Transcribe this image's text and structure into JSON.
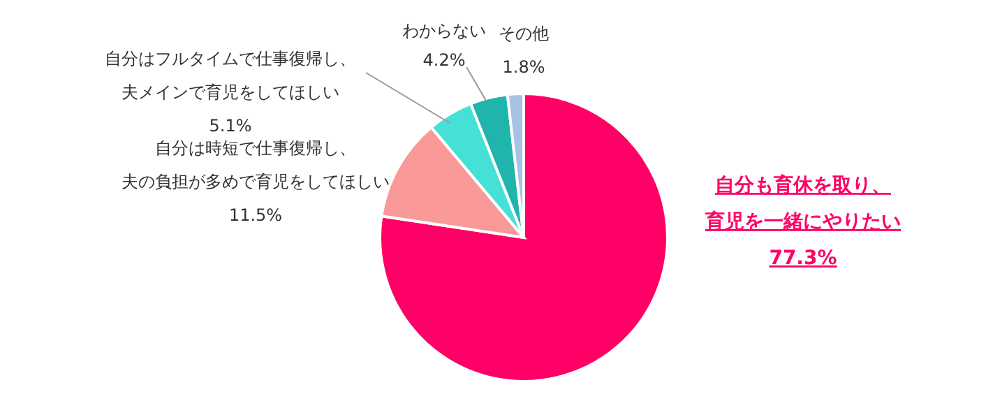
{
  "chart_data": {
    "type": "pie",
    "categories": [
      "自分も育休を取り、育児を一緒にやりたい",
      "自分は時短で仕事復帰し、夫の負担が多めで育児をしてほしい",
      "自分はフルタイムで仕事復帰し、夫メインで育児をしてほしい",
      "わからない",
      "その他"
    ],
    "values": [
      77.3,
      11.5,
      5.1,
      4.2,
      1.8
    ],
    "colors": [
      "#ff0066",
      "#f99a98",
      "#45e0d6",
      "#1fb5ad",
      "#a6c3e4"
    ],
    "value_labels": [
      "77.3%",
      "11.5%",
      "5.1%",
      "4.2%",
      "1.8%"
    ]
  }
}
